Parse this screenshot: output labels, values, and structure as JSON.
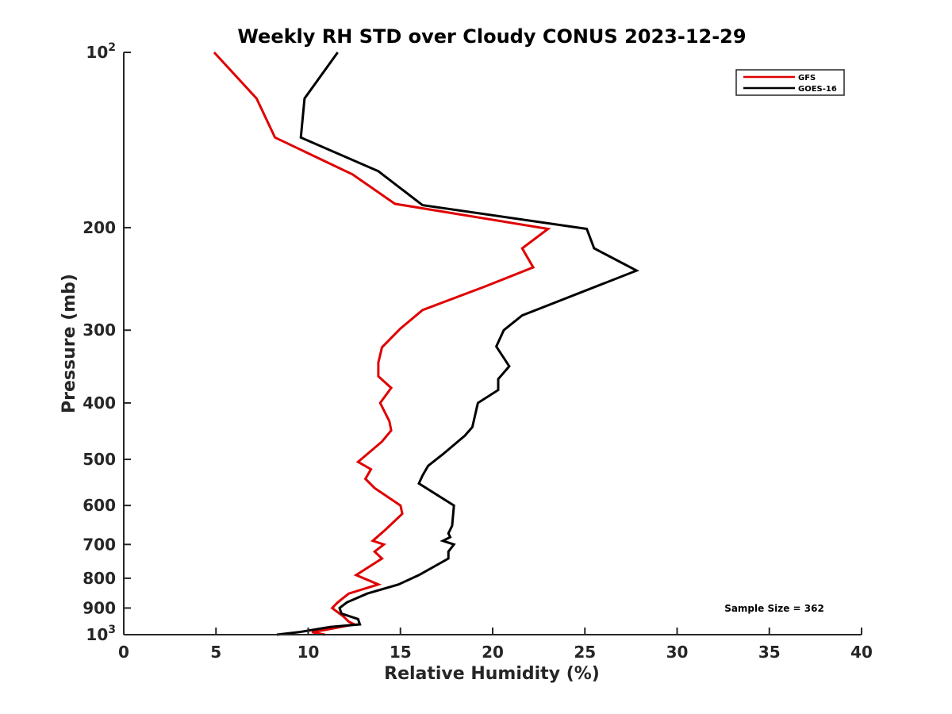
{
  "chart_data": {
    "type": "line",
    "title": "Weekly RH STD over Cloudy CONUS 2023-12-29",
    "xlabel": "Relative Humidity (%)",
    "ylabel": "Pressure (mb)",
    "xlim": [
      0,
      40
    ],
    "ylim": [
      100,
      1000
    ],
    "yscale": "log",
    "yreversed": true,
    "x_ticks": [
      "0",
      "5",
      "10",
      "15",
      "20",
      "25",
      "30",
      "35",
      "40"
    ],
    "y_ticks": [
      {
        "value": 100,
        "base": "10",
        "exp": "2"
      },
      {
        "value": 200,
        "label": "200"
      },
      {
        "value": 300,
        "label": "300"
      },
      {
        "value": 400,
        "label": "400"
      },
      {
        "value": 500,
        "label": "500"
      },
      {
        "value": 600,
        "label": "600"
      },
      {
        "value": 700,
        "label": "700"
      },
      {
        "value": 800,
        "label": "800"
      },
      {
        "value": 900,
        "label": "900"
      },
      {
        "value": 1000,
        "base": "10",
        "exp": "3"
      }
    ],
    "legend_position": "top-right",
    "annotation": "Sample Size = 362",
    "series": [
      {
        "name": "GFS",
        "color": "#e00000",
        "points": [
          [
            4.9,
            100
          ],
          [
            7.2,
            120
          ],
          [
            8.2,
            140
          ],
          [
            12.4,
            162
          ],
          [
            14.7,
            182
          ],
          [
            23.0,
            201
          ],
          [
            21.6,
            217
          ],
          [
            22.2,
            234
          ],
          [
            19.5,
            253
          ],
          [
            16.2,
            277
          ],
          [
            15.0,
            298
          ],
          [
            14.0,
            321
          ],
          [
            13.8,
            341
          ],
          [
            13.8,
            360
          ],
          [
            14.5,
            377
          ],
          [
            13.9,
            400
          ],
          [
            14.4,
            430
          ],
          [
            14.5,
            446
          ],
          [
            14.0,
            466
          ],
          [
            12.7,
            505
          ],
          [
            13.4,
            520
          ],
          [
            13.1,
            540
          ],
          [
            13.6,
            560
          ],
          [
            15.0,
            600
          ],
          [
            15.1,
            620
          ],
          [
            14.2,
            660
          ],
          [
            13.5,
            690
          ],
          [
            14.1,
            700
          ],
          [
            13.6,
            720
          ],
          [
            14.0,
            740
          ],
          [
            12.6,
            790
          ],
          [
            13.8,
            820
          ],
          [
            12.2,
            850
          ],
          [
            11.6,
            880
          ],
          [
            11.3,
            900
          ],
          [
            11.9,
            930
          ],
          [
            12.2,
            950
          ],
          [
            12.5,
            960
          ],
          [
            11.0,
            980
          ],
          [
            10.2,
            990
          ],
          [
            10.9,
            1000
          ]
        ]
      },
      {
        "name": "GOES-16",
        "color": "#000000",
        "points": [
          [
            11.6,
            100
          ],
          [
            9.8,
            120
          ],
          [
            9.6,
            140
          ],
          [
            13.8,
            160
          ],
          [
            16.2,
            183
          ],
          [
            25.1,
            201
          ],
          [
            25.5,
            217
          ],
          [
            27.8,
            237
          ],
          [
            21.6,
            283
          ],
          [
            20.6,
            300
          ],
          [
            20.2,
            320
          ],
          [
            20.9,
            346
          ],
          [
            20.3,
            364
          ],
          [
            20.3,
            380
          ],
          [
            19.2,
            400
          ],
          [
            18.9,
            440
          ],
          [
            18.5,
            455
          ],
          [
            17.3,
            490
          ],
          [
            16.5,
            513
          ],
          [
            16.2,
            533
          ],
          [
            16.0,
            550
          ],
          [
            17.9,
            600
          ],
          [
            17.8,
            650
          ],
          [
            17.6,
            670
          ],
          [
            17.7,
            680
          ],
          [
            17.3,
            690
          ],
          [
            17.9,
            700
          ],
          [
            17.6,
            720
          ],
          [
            17.6,
            740
          ],
          [
            16.0,
            790
          ],
          [
            14.9,
            820
          ],
          [
            13.2,
            850
          ],
          [
            12.1,
            880
          ],
          [
            11.7,
            900
          ],
          [
            11.8,
            920
          ],
          [
            12.7,
            940
          ],
          [
            12.8,
            960
          ],
          [
            11.2,
            970
          ],
          [
            9.5,
            990
          ],
          [
            8.3,
            1000
          ]
        ]
      }
    ]
  }
}
